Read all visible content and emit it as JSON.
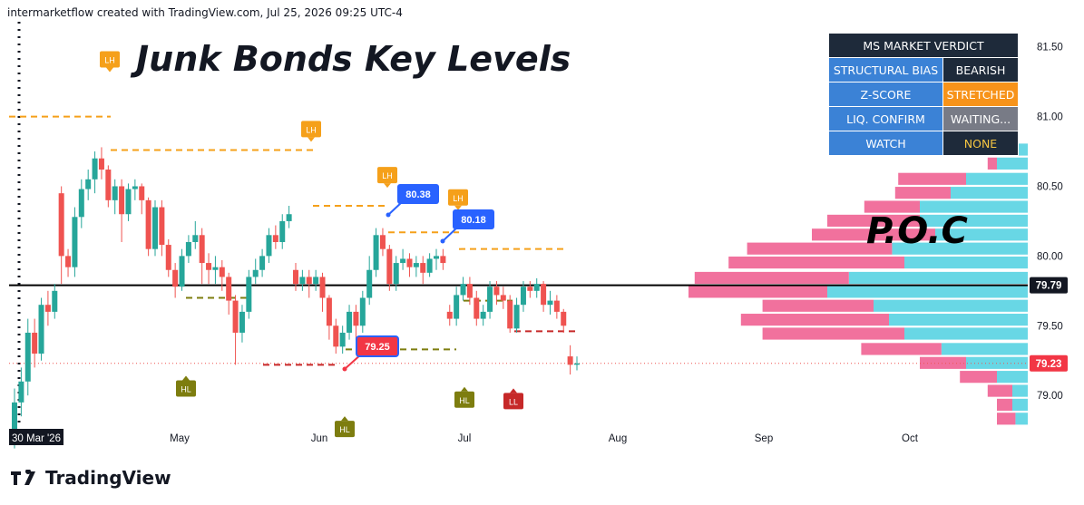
{
  "attribution": "intermarketflow created with TradingView.com, Jul 25, 2026 09:25 UTC-4",
  "brand": "TradingView",
  "colors": {
    "up": "#26a69a",
    "down": "#ef5350",
    "lh": "#f5a01a",
    "hl": "#7d7d0f",
    "ll": "#c62828",
    "callout": "#2962ff",
    "poc_pink": "#f06292",
    "poc_cyan": "#4dd0e1",
    "hdr": "#1e2a3a",
    "label": "#3b82d6"
  },
  "verdict": {
    "title": "MS MARKET VERDICT",
    "rows": [
      {
        "label": "STRUCTURAL BIAS",
        "value": "BEARISH",
        "color": "#1e2a3a",
        "text": "#ffffff"
      },
      {
        "label": "Z-SCORE",
        "value": "STRETCHED",
        "color": "#f7931a",
        "text": "#ffffff"
      },
      {
        "label": "LIQ. CONFIRM",
        "value": "WAITING...",
        "color": "#787b86",
        "text": "#ffffff"
      },
      {
        "label": "WATCH",
        "value": "NONE",
        "color": "#1e2a3a",
        "text": "#f5c542"
      }
    ]
  },
  "chart_data": {
    "type": "candlestick",
    "title": "Junk Bonds Key Levels",
    "annotation": "P.O.C",
    "x_axis_labels": [
      "30 Mar '26",
      "May",
      "Jun",
      "Jul",
      "Aug",
      "Sep",
      "Oct"
    ],
    "y_ticks": [
      79.0,
      79.5,
      80.0,
      80.5,
      81.0,
      81.5
    ],
    "ylim": [
      78.78,
      81.68
    ],
    "price_labels": [
      {
        "value": 79.79,
        "text": "79.79",
        "style": "black"
      },
      {
        "value": 79.23,
        "text": "79.23",
        "style": "red"
      }
    ],
    "callouts": [
      {
        "text": "80.38",
        "value": 80.38
      },
      {
        "text": "80.18",
        "value": 80.18
      },
      {
        "text": "79.25",
        "value": 79.25
      }
    ],
    "markers": [
      {
        "text": "LH",
        "value": 81.41
      },
      {
        "text": "LH",
        "value": 80.91
      },
      {
        "text": "LH",
        "value": 80.58
      },
      {
        "text": "LH",
        "value": 80.42
      },
      {
        "text": "HL",
        "value": 79.05
      },
      {
        "text": "HL",
        "value": 78.97
      },
      {
        "text": "LL",
        "value": 78.96
      },
      {
        "text": "HL",
        "value": 78.76
      }
    ],
    "levels": [
      {
        "value": 81.0,
        "style": "lh"
      },
      {
        "value": 80.76,
        "style": "lh"
      },
      {
        "value": 80.36,
        "style": "lh"
      },
      {
        "value": 80.17,
        "style": "lh"
      },
      {
        "value": 80.05,
        "style": "lh"
      },
      {
        "value": 79.7,
        "style": "hl"
      },
      {
        "value": 79.33,
        "style": "hl"
      },
      {
        "value": 79.68,
        "style": "hl"
      },
      {
        "value": 79.22,
        "style": "ll"
      },
      {
        "value": 79.46,
        "style": "ll"
      }
    ],
    "poc_level": 79.79,
    "candles": [
      [
        78.7,
        78.95,
        78.62,
        79.05
      ],
      [
        78.95,
        79.1,
        78.85,
        79.2
      ],
      [
        79.1,
        79.45,
        79.0,
        79.55
      ],
      [
        79.45,
        79.3,
        79.2,
        79.55
      ],
      [
        79.3,
        79.65,
        79.25,
        79.7
      ],
      [
        79.65,
        79.6,
        79.5,
        79.75
      ],
      [
        79.6,
        79.75,
        79.55,
        79.8
      ],
      [
        80.45,
        80.0,
        79.8,
        80.5
      ],
      [
        80.0,
        79.92,
        79.85,
        80.05
      ],
      [
        79.92,
        80.28,
        79.85,
        80.35
      ],
      [
        80.28,
        80.48,
        80.2,
        80.55
      ],
      [
        80.48,
        80.55,
        80.4,
        80.62
      ],
      [
        80.55,
        80.7,
        80.45,
        80.75
      ],
      [
        80.7,
        80.62,
        80.55,
        80.78
      ],
      [
        80.62,
        80.4,
        80.35,
        80.65
      ],
      [
        80.4,
        80.5,
        80.3,
        80.55
      ],
      [
        80.5,
        80.3,
        80.1,
        80.55
      ],
      [
        80.3,
        80.48,
        80.25,
        80.52
      ],
      [
        80.48,
        80.5,
        80.4,
        80.55
      ],
      [
        80.5,
        80.4,
        80.3,
        80.52
      ],
      [
        80.4,
        80.05,
        80.0,
        80.42
      ],
      [
        80.05,
        80.35,
        80.0,
        80.4
      ],
      [
        80.35,
        80.08,
        80.0,
        80.4
      ],
      [
        80.08,
        79.9,
        79.85,
        80.12
      ],
      [
        79.9,
        79.78,
        79.7,
        79.95
      ],
      [
        79.78,
        80.0,
        79.75,
        80.05
      ],
      [
        80.0,
        80.1,
        79.95,
        80.15
      ],
      [
        80.1,
        80.15,
        80.05,
        80.25
      ],
      [
        80.15,
        79.95,
        79.8,
        80.2
      ],
      [
        79.95,
        79.9,
        79.8,
        80.02
      ],
      [
        79.9,
        79.92,
        79.8,
        80.0
      ],
      [
        79.92,
        79.85,
        79.75,
        79.97
      ],
      [
        79.85,
        79.68,
        79.58,
        79.88
      ],
      [
        79.68,
        79.45,
        79.22,
        79.72
      ],
      [
        79.45,
        79.6,
        79.38,
        79.65
      ],
      [
        79.6,
        79.85,
        79.55,
        79.9
      ],
      [
        79.85,
        79.9,
        79.8,
        79.98
      ],
      [
        79.9,
        80.0,
        79.85,
        80.05
      ],
      [
        80.0,
        80.15,
        79.95,
        80.2
      ],
      [
        80.15,
        80.1,
        80.05,
        80.22
      ],
      [
        80.1,
        80.25,
        80.05,
        80.3
      ],
      [
        80.25,
        80.3,
        80.2,
        80.36
      ],
      [
        79.9,
        79.8,
        79.75,
        79.95
      ],
      [
        79.8,
        79.85,
        79.75,
        79.9
      ],
      [
        79.85,
        79.8,
        79.7,
        79.9
      ],
      [
        79.8,
        79.85,
        79.75,
        79.9
      ],
      [
        79.85,
        79.7,
        79.6,
        79.88
      ],
      [
        79.7,
        79.5,
        79.4,
        79.72
      ],
      [
        79.5,
        79.35,
        79.3,
        79.55
      ],
      [
        79.35,
        79.45,
        79.3,
        79.5
      ],
      [
        79.45,
        79.6,
        79.4,
        79.65
      ],
      [
        79.6,
        79.5,
        79.4,
        79.65
      ],
      [
        79.5,
        79.7,
        79.45,
        79.75
      ],
      [
        79.7,
        79.9,
        79.65,
        80.0
      ],
      [
        79.9,
        80.15,
        79.85,
        80.2
      ],
      [
        80.15,
        80.05,
        80.0,
        80.2
      ],
      [
        80.05,
        79.8,
        79.75,
        80.08
      ],
      [
        79.8,
        79.95,
        79.75,
        80.0
      ],
      [
        79.95,
        79.98,
        79.9,
        80.05
      ],
      [
        79.98,
        79.92,
        79.85,
        80.02
      ],
      [
        79.92,
        79.95,
        79.85,
        80.0
      ],
      [
        79.95,
        79.88,
        79.8,
        80.0
      ],
      [
        79.88,
        79.98,
        79.85,
        80.02
      ],
      [
        79.98,
        80.0,
        79.9,
        80.05
      ],
      [
        80.0,
        79.95,
        79.9,
        80.05
      ],
      [
        79.6,
        79.55,
        79.5,
        79.65
      ],
      [
        79.55,
        79.72,
        79.5,
        79.78
      ],
      [
        79.72,
        79.8,
        79.68,
        79.85
      ],
      [
        79.8,
        79.7,
        79.65,
        79.85
      ],
      [
        79.7,
        79.55,
        79.5,
        79.75
      ],
      [
        79.55,
        79.6,
        79.5,
        79.65
      ],
      [
        79.6,
        79.78,
        79.55,
        79.82
      ],
      [
        79.78,
        79.72,
        79.65,
        79.82
      ],
      [
        79.72,
        79.68,
        79.62,
        79.78
      ],
      [
        79.68,
        79.48,
        79.45,
        79.72
      ],
      [
        79.48,
        79.65,
        79.45,
        79.7
      ],
      [
        79.65,
        79.78,
        79.6,
        79.82
      ],
      [
        79.78,
        79.75,
        79.7,
        79.82
      ],
      [
        79.75,
        79.8,
        79.7,
        79.84
      ],
      [
        79.8,
        79.65,
        79.6,
        79.82
      ],
      [
        79.65,
        79.68,
        79.58,
        79.75
      ],
      [
        79.68,
        79.6,
        79.55,
        79.72
      ],
      [
        79.6,
        79.5,
        79.45,
        79.62
      ],
      [
        79.28,
        79.22,
        79.15,
        79.36
      ],
      [
        79.22,
        79.23,
        79.18,
        79.28
      ]
    ],
    "volume_profile": [
      {
        "price": 80.76,
        "pink": 0.08,
        "cyan": 0.05
      },
      {
        "price": 80.66,
        "pink": 0.03,
        "cyan": 0.1
      },
      {
        "price": 80.55,
        "pink": 0.22,
        "cyan": 0.2
      },
      {
        "price": 80.45,
        "pink": 0.18,
        "cyan": 0.25
      },
      {
        "price": 80.35,
        "pink": 0.18,
        "cyan": 0.35
      },
      {
        "price": 80.25,
        "pink": 0.3,
        "cyan": 0.35
      },
      {
        "price": 80.15,
        "pink": 0.4,
        "cyan": 0.3
      },
      {
        "price": 80.05,
        "pink": 0.47,
        "cyan": 0.44
      },
      {
        "price": 79.95,
        "pink": 0.57,
        "cyan": 0.4
      },
      {
        "price": 79.84,
        "pink": 0.5,
        "cyan": 0.58
      },
      {
        "price": 79.74,
        "pink": 0.45,
        "cyan": 0.65
      },
      {
        "price": 79.64,
        "pink": 0.36,
        "cyan": 0.5
      },
      {
        "price": 79.54,
        "pink": 0.48,
        "cyan": 0.45
      },
      {
        "price": 79.44,
        "pink": 0.46,
        "cyan": 0.4
      },
      {
        "price": 79.33,
        "pink": 0.26,
        "cyan": 0.28
      },
      {
        "price": 79.23,
        "pink": 0.15,
        "cyan": 0.2
      },
      {
        "price": 79.13,
        "pink": 0.12,
        "cyan": 0.1
      },
      {
        "price": 79.03,
        "pink": 0.08,
        "cyan": 0.05
      },
      {
        "price": 78.93,
        "pink": 0.05,
        "cyan": 0.05
      },
      {
        "price": 78.83,
        "pink": 0.06,
        "cyan": 0.04
      }
    ]
  }
}
